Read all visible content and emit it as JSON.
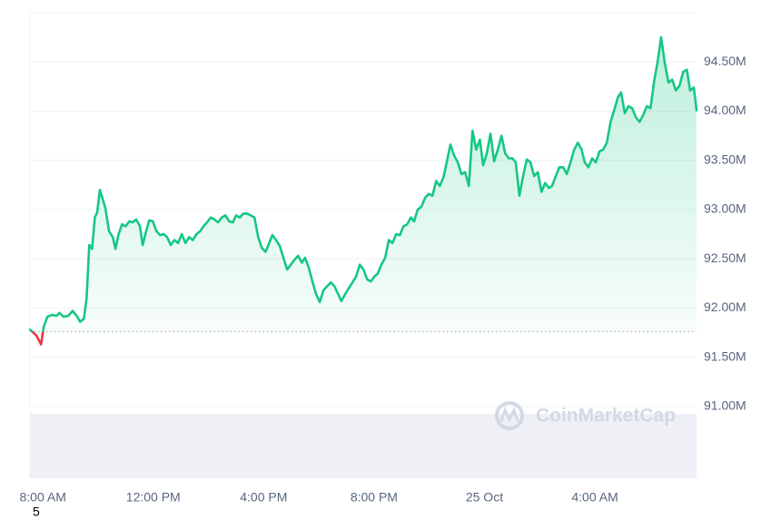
{
  "chart_data": {
    "type": "line",
    "watermark": "CoinMarketCap",
    "footnote": "5",
    "xlim": [
      -28,
      1421
    ],
    "ylim": [
      90.27,
      95.0
    ],
    "xticks": [
      {
        "value": 0,
        "label": "8:00 AM"
      },
      {
        "value": 240,
        "label": "12:00 PM"
      },
      {
        "value": 480,
        "label": "4:00 PM"
      },
      {
        "value": 720,
        "label": "8:00 PM"
      },
      {
        "value": 960,
        "label": "25 Oct"
      },
      {
        "value": 1200,
        "label": "4:00 AM"
      }
    ],
    "yticks": [
      {
        "value": 91,
        "label": "91.00M"
      },
      {
        "value": 91.5,
        "label": "91.50M"
      },
      {
        "value": 92,
        "label": "92.00M"
      },
      {
        "value": 92.5,
        "label": "92.50M"
      },
      {
        "value": 93,
        "label": "93.00M"
      },
      {
        "value": 93.5,
        "label": "93.50M"
      },
      {
        "value": 94,
        "label": "94.00M"
      },
      {
        "value": 94.5,
        "label": "94.50M"
      }
    ],
    "grid": true,
    "baseline": 91.76,
    "x": [
      -28,
      -14,
      -4,
      2,
      10,
      20,
      30,
      36,
      45,
      55,
      65,
      75,
      81,
      89,
      95,
      101,
      107,
      113,
      118,
      124,
      130,
      136,
      144,
      152,
      158,
      164,
      172,
      180,
      188,
      195,
      203,
      211,
      217,
      223,
      231,
      239,
      247,
      255,
      263,
      270,
      278,
      286,
      294,
      302,
      310,
      318,
      326,
      334,
      342,
      349,
      357,
      365,
      373,
      381,
      389,
      397,
      405,
      413,
      420,
      428,
      436,
      444,
      452,
      460,
      468,
      476,
      484,
      492,
      499,
      507,
      515,
      523,
      531,
      539,
      547,
      555,
      563,
      570,
      578,
      586,
      594,
      602,
      610,
      618,
      626,
      634,
      642,
      649,
      657,
      665,
      673,
      681,
      689,
      697,
      705,
      713,
      721,
      728,
      736,
      744,
      752,
      760,
      768,
      776,
      784,
      792,
      800,
      807,
      815,
      823,
      831,
      839,
      847,
      855,
      863,
      871,
      878,
      886,
      894,
      902,
      910,
      918,
      926,
      934,
      942,
      950,
      957,
      965,
      973,
      981,
      989,
      997,
      1005,
      1013,
      1021,
      1028,
      1036,
      1044,
      1052,
      1060,
      1068,
      1076,
      1084,
      1092,
      1100,
      1107,
      1115,
      1123,
      1131,
      1139,
      1147,
      1155,
      1163,
      1171,
      1178,
      1186,
      1194,
      1202,
      1210,
      1218,
      1226,
      1234,
      1242,
      1250,
      1257,
      1265,
      1273,
      1281,
      1289,
      1297,
      1305,
      1313,
      1321,
      1329,
      1336,
      1344,
      1352,
      1360,
      1368,
      1376,
      1384,
      1392,
      1400,
      1407,
      1415,
      1421
    ],
    "series": [
      {
        "color": "#16c784",
        "below_color": "#ea3943",
        "values": [
          91.78,
          91.72,
          91.63,
          91.81,
          91.91,
          91.93,
          91.92,
          91.95,
          91.91,
          91.92,
          91.97,
          91.91,
          91.86,
          91.89,
          92.09,
          92.64,
          92.6,
          92.92,
          92.97,
          93.2,
          93.11,
          93.01,
          92.78,
          92.72,
          92.6,
          92.74,
          92.85,
          92.83,
          92.88,
          92.87,
          92.9,
          92.83,
          92.64,
          92.75,
          92.89,
          92.88,
          92.78,
          92.74,
          92.75,
          92.72,
          92.64,
          92.69,
          92.66,
          92.75,
          92.66,
          92.72,
          92.69,
          92.75,
          92.78,
          92.83,
          92.87,
          92.92,
          92.9,
          92.87,
          92.92,
          92.94,
          92.88,
          92.87,
          92.94,
          92.92,
          92.96,
          92.96,
          92.94,
          92.92,
          92.72,
          92.61,
          92.57,
          92.66,
          92.74,
          92.69,
          92.63,
          92.51,
          92.39,
          92.44,
          92.49,
          92.53,
          92.46,
          92.51,
          92.41,
          92.27,
          92.14,
          92.06,
          92.18,
          92.22,
          92.26,
          92.22,
          92.14,
          92.07,
          92.14,
          92.2,
          92.26,
          92.32,
          92.44,
          92.39,
          92.29,
          92.27,
          92.32,
          92.35,
          92.44,
          92.51,
          92.69,
          92.66,
          92.75,
          92.74,
          92.83,
          92.85,
          92.92,
          92.88,
          93.0,
          93.03,
          93.12,
          93.16,
          93.14,
          93.29,
          93.24,
          93.33,
          93.48,
          93.66,
          93.55,
          93.48,
          93.36,
          93.38,
          93.24,
          93.8,
          93.61,
          93.71,
          93.45,
          93.57,
          93.77,
          93.49,
          93.61,
          93.75,
          93.57,
          93.52,
          93.52,
          93.48,
          93.14,
          93.34,
          93.51,
          93.48,
          93.34,
          93.38,
          93.18,
          93.27,
          93.22,
          93.24,
          93.34,
          93.43,
          93.43,
          93.36,
          93.48,
          93.61,
          93.68,
          93.61,
          93.48,
          93.43,
          93.52,
          93.48,
          93.59,
          93.61,
          93.68,
          93.89,
          94.01,
          94.14,
          94.19,
          93.98,
          94.05,
          94.03,
          93.94,
          93.89,
          93.96,
          94.05,
          94.03,
          94.31,
          94.49,
          94.75,
          94.49,
          94.29,
          94.32,
          94.21,
          94.26,
          94.4,
          94.42,
          94.21,
          94.24,
          94.01
        ]
      }
    ]
  }
}
